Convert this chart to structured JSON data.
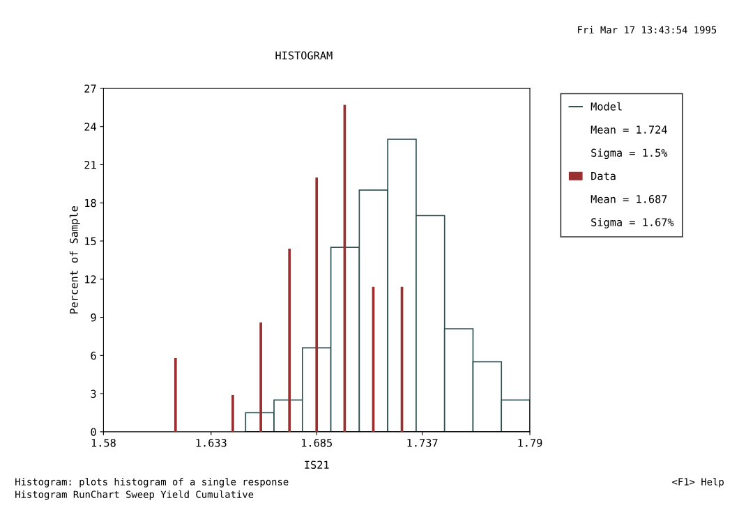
{
  "chart_data": {
    "type": "histogram",
    "title": "HISTOGRAM",
    "xlabel": "IS21",
    "ylabel": "Percent of Sample",
    "xlim": [
      1.58,
      1.79
    ],
    "xticks": [
      1.58,
      1.633,
      1.685,
      1.737,
      1.79
    ],
    "ylim": [
      0,
      27
    ],
    "yticks": [
      0,
      3,
      6,
      9,
      12,
      15,
      18,
      21,
      24,
      27
    ],
    "grid": false,
    "legend": "right",
    "series": [
      {
        "name": "Model",
        "color": "#2f4f4f",
        "bins": [
          1.58,
          1.594,
          1.608,
          1.622,
          1.636,
          1.65,
          1.664,
          1.678,
          1.692,
          1.706,
          1.72,
          1.734,
          1.748,
          1.762,
          1.776,
          1.79
        ],
        "values": [
          0,
          0,
          0,
          0,
          0,
          1.5,
          2.5,
          6.6,
          14.5,
          19,
          23,
          17,
          8.1,
          5.5,
          2.5
        ]
      },
      {
        "name": "Data",
        "type": "bar",
        "color": "#9b2f2f",
        "x": [
          1.6155,
          1.6437,
          1.6575,
          1.6716,
          1.685,
          1.6988,
          1.7129,
          1.727
        ],
        "values": [
          5.8,
          2.9,
          8.6,
          14.4,
          20,
          25.7,
          11.4,
          11.4
        ]
      }
    ],
    "annotations": [
      "Mean = 1.724",
      "Sigma = 1.5%",
      "Mean = 1.687",
      "Sigma = 1.67%",
      "Fri Mar 17 13:43:54 1995",
      "Histogram: plots histogram of a single response",
      "<F1> Help",
      "Histogram RunChart Sweep Yield Cumulative"
    ]
  }
}
